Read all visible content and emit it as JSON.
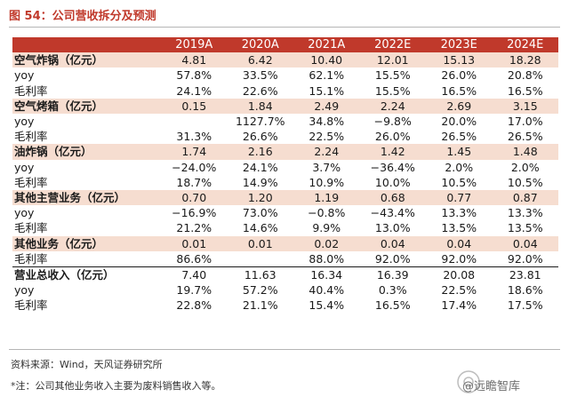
{
  "title": "图 54：公司营收拆分及预测",
  "columns": [
    "",
    "2019A",
    "2020A",
    "2021A",
    "2022E",
    "2023E",
    "2024E"
  ],
  "rows": [
    {
      "label": "空气炸锅（亿元）",
      "kind": "section",
      "values": [
        "4.81",
        "6.42",
        "10.40",
        "12.01",
        "15.13",
        "18.28"
      ]
    },
    {
      "label": "yoy",
      "kind": "plain",
      "values": [
        "57.8%",
        "33.5%",
        "62.1%",
        "15.5%",
        "26.0%",
        "20.8%"
      ]
    },
    {
      "label": "毛利率",
      "kind": "plain",
      "values": [
        "24.1%",
        "22.6%",
        "15.1%",
        "15.5%",
        "16.5%",
        "16.5%"
      ]
    },
    {
      "label": "空气烤箱（亿元）",
      "kind": "section",
      "values": [
        "0.15",
        "1.84",
        "2.49",
        "2.24",
        "2.69",
        "3.15"
      ]
    },
    {
      "label": "yoy",
      "kind": "plain",
      "values": [
        "",
        "1127.7%",
        "34.8%",
        "−9.8%",
        "20.0%",
        "17.0%"
      ]
    },
    {
      "label": "毛利率",
      "kind": "plain",
      "values": [
        "31.3%",
        "26.6%",
        "22.5%",
        "26.0%",
        "26.5%",
        "26.5%"
      ]
    },
    {
      "label": "油炸锅（亿元）",
      "kind": "section",
      "values": [
        "1.74",
        "2.16",
        "2.24",
        "1.42",
        "1.45",
        "1.48"
      ]
    },
    {
      "label": "yoy",
      "kind": "plain",
      "values": [
        "−24.0%",
        "24.1%",
        "3.7%",
        "−36.4%",
        "2.0%",
        "2.0%"
      ]
    },
    {
      "label": "毛利率",
      "kind": "plain",
      "values": [
        "18.7%",
        "14.9%",
        "10.9%",
        "10.0%",
        "10.5%",
        "10.5%"
      ]
    },
    {
      "label": "其他主营业务（亿元）",
      "kind": "section",
      "values": [
        "0.70",
        "1.20",
        "1.19",
        "0.68",
        "0.77",
        "0.87"
      ]
    },
    {
      "label": "yoy",
      "kind": "plain",
      "values": [
        "−16.9%",
        "73.0%",
        "−0.8%",
        "−43.4%",
        "13.3%",
        "13.3%"
      ]
    },
    {
      "label": "毛利率",
      "kind": "plain",
      "values": [
        "21.2%",
        "14.6%",
        "9.9%",
        "13.0%",
        "13.5%",
        "13.5%"
      ]
    },
    {
      "label": "其他业务（亿元）",
      "kind": "section",
      "values": [
        "0.01",
        "0.01",
        "0.02",
        "0.04",
        "0.04",
        "0.04"
      ]
    },
    {
      "label": "毛利率",
      "kind": "plain",
      "values": [
        "86.6%",
        "",
        "88.0%",
        "92.0%",
        "92.0%",
        "92.0%"
      ]
    },
    {
      "label": "营业总收入（亿元）",
      "kind": "total",
      "values": [
        "7.40",
        "11.63",
        "16.34",
        "16.39",
        "20.08",
        "23.81"
      ]
    },
    {
      "label": "yoy",
      "kind": "plain",
      "values": [
        "19.7%",
        "57.2%",
        "40.4%",
        "0.3%",
        "22.5%",
        "18.6%"
      ]
    },
    {
      "label": "毛利率",
      "kind": "plain",
      "values": [
        "22.8%",
        "21.1%",
        "15.4%",
        "16.5%",
        "17.4%",
        "17.5%"
      ]
    }
  ],
  "source": "资料来源：Wind，天风证券研究所",
  "note": "*注：公司其他业务收入主要为废料销售收入等。",
  "watermark": "@远瞻智库",
  "watermark_icon": "watermark-logo-icon"
}
